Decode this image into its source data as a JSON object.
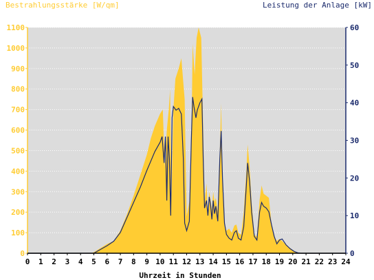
{
  "chart_data": {
    "type": "area",
    "title_left": "Bestrahlungsstärke [W/qm]",
    "title_right": "Leistung der Anlage [kW]",
    "xlabel": "Uhrzeit in Stunden",
    "xlim": [
      0,
      24
    ],
    "x_ticks": [
      "0",
      "1",
      "2",
      "3",
      "4",
      "5",
      "6",
      "7",
      "8",
      "9",
      "10",
      "11",
      "12",
      "13",
      "14",
      "15",
      "16",
      "17",
      "18",
      "19",
      "20",
      "21",
      "22",
      "23",
      "24"
    ],
    "y_left": {
      "lim": [
        0,
        1100
      ],
      "ticks": [
        "0",
        "100",
        "200",
        "300",
        "400",
        "500",
        "600",
        "700",
        "800",
        "900",
        "1000",
        "1100"
      ]
    },
    "y_right": {
      "lim": [
        0,
        60
      ],
      "ticks": [
        "0",
        "10",
        "20",
        "30",
        "40",
        "50",
        "60"
      ]
    },
    "grid": true,
    "colors": {
      "irradiance_fill": "#ffcc33",
      "power_line": "#1a2a6c",
      "plot_bg": "#dcdcdc",
      "left_axis_text": "#ffcc33",
      "right_axis_text": "#1a2a6c",
      "x_axis_text": "#000000"
    },
    "series": [
      {
        "axis": "left",
        "style": "area",
        "points": [
          [
            0,
            0
          ],
          [
            4.8,
            0
          ],
          [
            5.0,
            5
          ],
          [
            5.5,
            25
          ],
          [
            6.0,
            45
          ],
          [
            6.5,
            60
          ],
          [
            7.0,
            110
          ],
          [
            7.5,
            190
          ],
          [
            8.0,
            280
          ],
          [
            8.5,
            380
          ],
          [
            9.0,
            480
          ],
          [
            9.3,
            560
          ],
          [
            9.6,
            620
          ],
          [
            10.0,
            680
          ],
          [
            10.2,
            700
          ],
          [
            10.35,
            420
          ],
          [
            10.5,
            600
          ],
          [
            10.65,
            700
          ],
          [
            10.75,
            800
          ],
          [
            10.85,
            250
          ],
          [
            11.0,
            700
          ],
          [
            11.15,
            850
          ],
          [
            11.4,
            900
          ],
          [
            11.6,
            950
          ],
          [
            11.85,
            750
          ],
          [
            12.0,
            180
          ],
          [
            12.2,
            250
          ],
          [
            12.35,
            500
          ],
          [
            12.45,
            1020
          ],
          [
            12.6,
            870
          ],
          [
            12.75,
            1050
          ],
          [
            12.9,
            1100
          ],
          [
            13.1,
            1050
          ],
          [
            13.25,
            600
          ],
          [
            13.35,
            250
          ],
          [
            13.5,
            340
          ],
          [
            13.6,
            180
          ],
          [
            13.7,
            300
          ],
          [
            13.8,
            260
          ],
          [
            13.9,
            210
          ],
          [
            14.0,
            300
          ],
          [
            14.1,
            250
          ],
          [
            14.2,
            270
          ],
          [
            14.35,
            200
          ],
          [
            14.5,
            500
          ],
          [
            14.6,
            730
          ],
          [
            14.7,
            350
          ],
          [
            14.85,
            130
          ],
          [
            15.0,
            110
          ],
          [
            15.2,
            120
          ],
          [
            15.4,
            100
          ],
          [
            15.6,
            135
          ],
          [
            15.75,
            140
          ],
          [
            15.9,
            100
          ],
          [
            16.1,
            90
          ],
          [
            16.3,
            200
          ],
          [
            16.5,
            400
          ],
          [
            16.6,
            530
          ],
          [
            16.75,
            420
          ],
          [
            16.9,
            250
          ],
          [
            17.1,
            90
          ],
          [
            17.3,
            80
          ],
          [
            17.5,
            260
          ],
          [
            17.65,
            330
          ],
          [
            17.8,
            290
          ],
          [
            18.0,
            280
          ],
          [
            18.2,
            270
          ],
          [
            18.4,
            140
          ],
          [
            18.6,
            80
          ],
          [
            18.8,
            60
          ],
          [
            19.0,
            70
          ],
          [
            19.2,
            60
          ],
          [
            19.5,
            40
          ],
          [
            19.8,
            25
          ],
          [
            20.1,
            10
          ],
          [
            20.4,
            2
          ],
          [
            20.6,
            0
          ],
          [
            24,
            0
          ]
        ]
      },
      {
        "axis": "right",
        "style": "line",
        "points": [
          [
            0,
            0
          ],
          [
            5.0,
            0
          ],
          [
            5.5,
            1
          ],
          [
            6.0,
            2
          ],
          [
            6.5,
            3.2
          ],
          [
            7.0,
            5.5
          ],
          [
            7.5,
            9.5
          ],
          [
            8.0,
            13.5
          ],
          [
            8.5,
            17.5
          ],
          [
            9.0,
            22
          ],
          [
            9.3,
            24.5
          ],
          [
            9.6,
            27
          ],
          [
            10.0,
            29.5
          ],
          [
            10.15,
            31
          ],
          [
            10.3,
            24
          ],
          [
            10.4,
            31
          ],
          [
            10.5,
            14
          ],
          [
            10.6,
            31
          ],
          [
            10.7,
            25
          ],
          [
            10.8,
            10
          ],
          [
            10.9,
            36
          ],
          [
            11.0,
            39
          ],
          [
            11.2,
            38
          ],
          [
            11.4,
            38.5
          ],
          [
            11.6,
            37
          ],
          [
            11.75,
            25
          ],
          [
            11.85,
            8
          ],
          [
            12.0,
            6
          ],
          [
            12.2,
            8.5
          ],
          [
            12.35,
            30
          ],
          [
            12.45,
            41.5
          ],
          [
            12.55,
            39
          ],
          [
            12.7,
            36
          ],
          [
            12.8,
            38
          ],
          [
            13.0,
            40
          ],
          [
            13.15,
            41
          ],
          [
            13.25,
            25
          ],
          [
            13.35,
            12
          ],
          [
            13.5,
            14
          ],
          [
            13.6,
            10
          ],
          [
            13.7,
            15
          ],
          [
            13.8,
            13
          ],
          [
            13.9,
            9
          ],
          [
            14.0,
            14
          ],
          [
            14.1,
            10.5
          ],
          [
            14.2,
            12.5
          ],
          [
            14.35,
            8.5
          ],
          [
            14.5,
            25
          ],
          [
            14.6,
            32.5
          ],
          [
            14.7,
            20
          ],
          [
            14.85,
            8
          ],
          [
            15.0,
            5
          ],
          [
            15.2,
            4
          ],
          [
            15.4,
            3.5
          ],
          [
            15.6,
            5.5
          ],
          [
            15.75,
            6
          ],
          [
            15.9,
            4
          ],
          [
            16.1,
            3.5
          ],
          [
            16.3,
            7
          ],
          [
            16.5,
            18
          ],
          [
            16.6,
            24
          ],
          [
            16.75,
            19
          ],
          [
            16.9,
            11
          ],
          [
            17.1,
            4.5
          ],
          [
            17.3,
            3.5
          ],
          [
            17.5,
            11
          ],
          [
            17.65,
            13.5
          ],
          [
            17.8,
            12.5
          ],
          [
            18.0,
            12
          ],
          [
            18.2,
            11
          ],
          [
            18.4,
            7.5
          ],
          [
            18.6,
            4.5
          ],
          [
            18.8,
            2.5
          ],
          [
            19.0,
            3.5
          ],
          [
            19.2,
            3.8
          ],
          [
            19.5,
            2.2
          ],
          [
            19.8,
            1.2
          ],
          [
            20.1,
            0.5
          ],
          [
            20.4,
            0.1
          ],
          [
            20.6,
            0
          ],
          [
            24,
            0
          ]
        ]
      }
    ]
  }
}
